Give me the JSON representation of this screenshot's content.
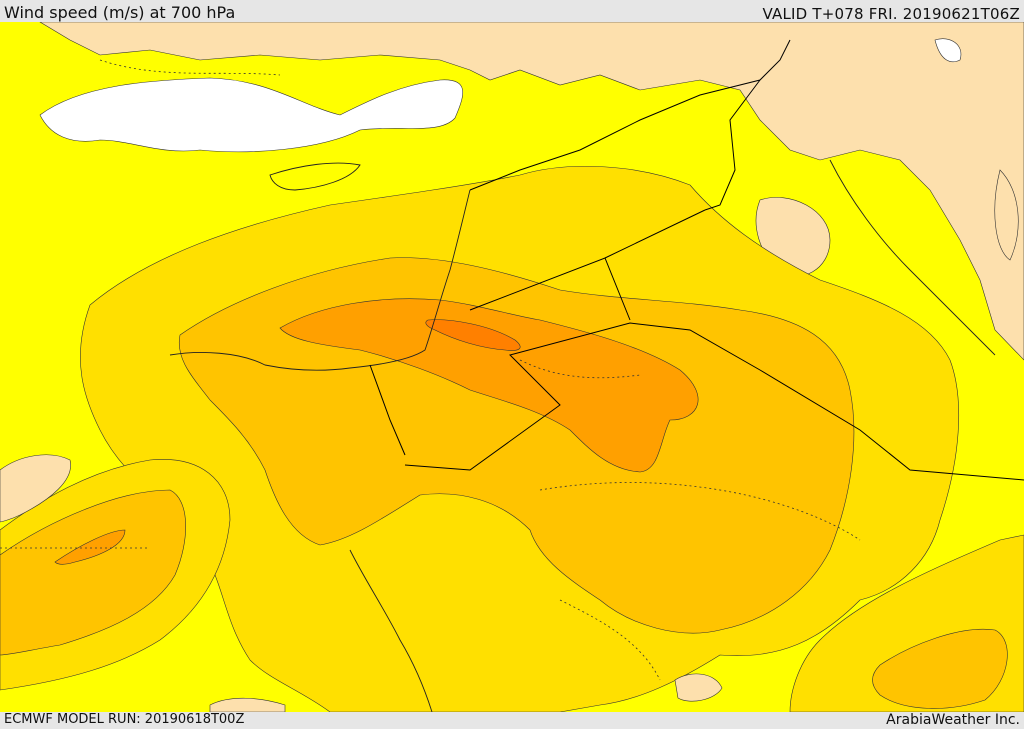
{
  "header": {
    "title": "Wind speed (m/s) at 700 hPa",
    "valid": "VALID T+078 FRI. 20190621T06Z"
  },
  "footer": {
    "model_run": "ECMWF MODEL RUN: 20190618T00Z",
    "credit": "ArabiaWeather Inc."
  },
  "colors": {
    "sea_white": "#ffffff",
    "land_tan": "#fde0ad",
    "band_yellow": "#ffff00",
    "band_gold": "#ffe000",
    "band_amber": "#ffc400",
    "band_orange": "#ffa000",
    "band_dark_orange": "#ff8000",
    "borders": "#000000"
  }
}
